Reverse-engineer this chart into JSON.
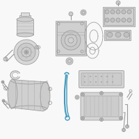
{
  "bg_color": "#f8f8f8",
  "line_color": "#aaaaaa",
  "dark_line": "#999999",
  "highlight_color": "#4499bb",
  "figsize": [
    2.0,
    2.0
  ],
  "dpi": 100
}
